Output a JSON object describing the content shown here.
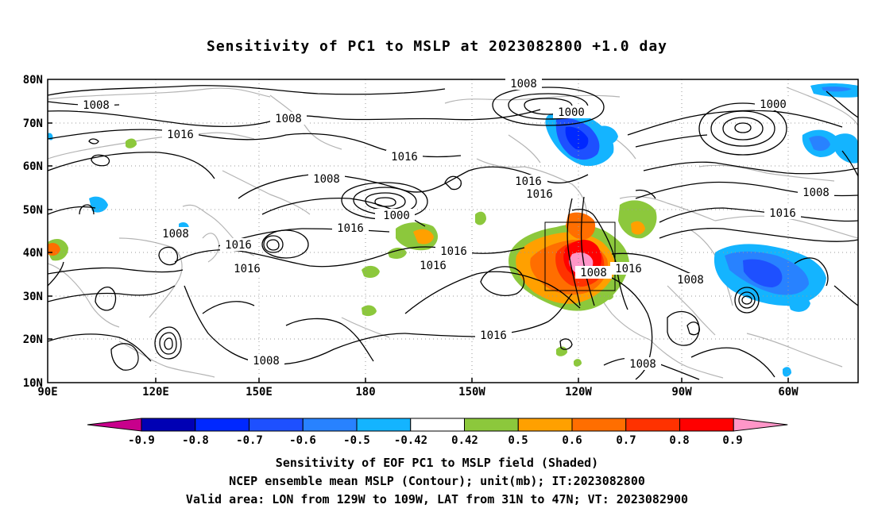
{
  "title": "Sensitivity of PC1 to MSLP at 2023082800 +1.0 day",
  "axes": {
    "lat_labels": [
      "80N",
      "70N",
      "60N",
      "50N",
      "40N",
      "30N",
      "20N",
      "10N"
    ],
    "lon_labels": [
      "90E",
      "120E",
      "150E",
      "180",
      "150W",
      "120W",
      "90W",
      "60W"
    ]
  },
  "contour_labels": [
    "1008",
    "1008",
    "1016",
    "1008",
    "1000",
    "1008",
    "1016",
    "1016",
    "1016",
    "1016",
    "1016",
    "1016",
    "1008",
    "1016",
    "1000",
    "1000",
    "1008",
    "1016",
    "1016",
    "1008",
    "1008",
    "1008",
    "1008",
    "1016",
    "1016"
  ],
  "colorbar": {
    "labels": [
      "-0.9",
      "-0.8",
      "-0.7",
      "-0.6",
      "-0.5",
      "-0.42",
      "0.42",
      "0.5",
      "0.6",
      "0.7",
      "0.8",
      "0.9"
    ],
    "colors": [
      "#c8008c",
      "#0000b4",
      "#0028ff",
      "#1e50ff",
      "#2882ff",
      "#14b4ff",
      "#ffffff",
      "#8cc83c",
      "#ffa000",
      "#ff6e00",
      "#ff3200",
      "#ff0000",
      "#ff96c8"
    ]
  },
  "captions": [
    "Sensitivity of EOF PC1 to MSLP field (Shaded)",
    "NCEP ensemble mean MSLP (Contour); unit(mb); IT:2023082800",
    "Valid area: LON from 129W to 109W, LAT from 31N to 47N; VT: 2023082900"
  ]
}
